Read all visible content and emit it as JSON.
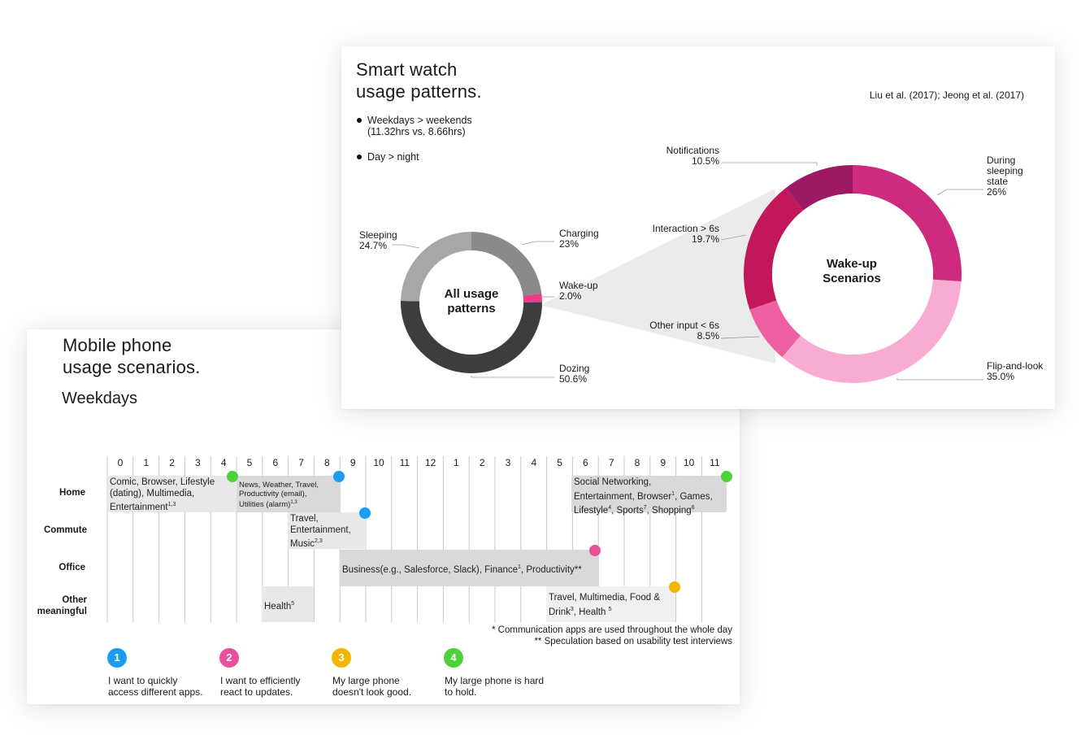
{
  "watch": {
    "title_line1": "Smart watch",
    "title_line2": "usage patterns.",
    "citation": "Liu et al. (2017);  Jeong et al. (2017)",
    "bullets": [
      {
        "line1": "Weekdays > weekends",
        "line2": "(11.32hrs vs. 8.66hrs)"
      },
      {
        "line1": "Day > night",
        "line2": ""
      }
    ],
    "chart_data": [
      {
        "type": "pie",
        "title": "All usage patterns",
        "center_line1": "All usage",
        "center_line2": "patterns",
        "slices": [
          {
            "label": "Charging",
            "value": 23,
            "value_text": "23%",
            "color": "#8a8a8a"
          },
          {
            "label": "Wake-up",
            "value": 2.0,
            "value_text": "2.0%",
            "color": "#e83e8c"
          },
          {
            "label": "Dozing",
            "value": 50.6,
            "value_text": "50.6%",
            "color": "#3d3d3d"
          },
          {
            "label": "Sleeping",
            "value": 24.7,
            "value_text": "24.7%",
            "color": "#a7a7a7"
          }
        ]
      },
      {
        "type": "pie",
        "title": "Wake-up Scenarios",
        "center_line1": "Wake-up",
        "center_line2": "Scenarios",
        "slices": [
          {
            "label": "During sleeping state",
            "label_lines": [
              "During",
              "sleeping",
              "state"
            ],
            "value": 26,
            "value_text": "26%",
            "color": "#cf2b7e"
          },
          {
            "label": "Flip-and-look",
            "value": 35.0,
            "value_text": "35.0%",
            "color": "#f8acd3"
          },
          {
            "label": "Other input < 6s",
            "value": 8.5,
            "value_text": "8.5%",
            "color": "#ee5fa2"
          },
          {
            "label": "Interaction > 6s",
            "value": 19.7,
            "value_text": "19.7%",
            "color": "#c2185b"
          },
          {
            "label": "Notifications",
            "value": 10.5,
            "value_text": "10.5%",
            "color": "#9c1a63"
          }
        ]
      }
    ]
  },
  "phone": {
    "title_line1": "Mobile phone",
    "title_line2": "usage scenarios.",
    "subtitle": "Weekdays",
    "hours": [
      "0",
      "1",
      "2",
      "3",
      "4",
      "5",
      "6",
      "7",
      "8",
      "9",
      "10",
      "11",
      "12",
      "1",
      "2",
      "3",
      "4",
      "5",
      "6",
      "7",
      "8",
      "9",
      "10",
      "11"
    ],
    "rows": {
      "home": "Home",
      "commute": "Commute",
      "office": "Office",
      "other_line1": "Other",
      "other_line2": "meaningful"
    },
    "blocks": {
      "home_early_l1": "Comic, Browser, Lifestyle",
      "home_early_l2": "(dating), Multimedia,",
      "home_early_l3": "Entertainment",
      "home_early_sup": "1,3",
      "home_morning_l1": "News, Weather, Travel,",
      "home_morning_l2": "Productivity (email),",
      "home_morning_l3": "Utilities (alarm)",
      "home_morning_sup": "1,3",
      "home_evening_l1": "Social Networking,",
      "home_evening_l2a": "Entertainment, Browser",
      "home_evening_sup1": "1",
      "home_evening_l2b": ", Games,",
      "home_evening_l3a": "Lifestyle",
      "home_evening_sup4": "4",
      "home_evening_l3b": ", Sports",
      "home_evening_sup7": "7",
      "home_evening_l3c": ", Shopping",
      "home_evening_sup6": "6",
      "commute_l1": "Travel,",
      "commute_l2": "Entertainment,",
      "commute_l3": "Music",
      "commute_sup": "2,3",
      "office_a": "Business(e.g., Salesforce, Slack), Finance",
      "office_sup": "1",
      "office_b": ", Productivity**",
      "health": "Health",
      "health_sup": "5",
      "other_eve_l1": "Travel, Multimedia, Food &",
      "other_eve_l2a": "Drink",
      "other_eve_sup3": "3",
      "other_eve_l2b": ", Health ",
      "other_eve_sup5": "5"
    },
    "notes": {
      "n1": "* Communication apps are used throughout the whole day",
      "n2": "** Speculation based on usability test interviews"
    },
    "legend": [
      {
        "num": "1",
        "color": "#1a9cf0",
        "line1": "I want to quickly",
        "line2": "access different apps."
      },
      {
        "num": "2",
        "color": "#ea4f9b",
        "line1": "I want to efficiently",
        "line2": "react to updates."
      },
      {
        "num": "3",
        "color": "#f5b400",
        "line1": "My large phone",
        "line2": "doesn't look good."
      },
      {
        "num": "4",
        "color": "#4fd13a",
        "line1": "My large phone is hard",
        "line2": "to hold."
      }
    ]
  }
}
